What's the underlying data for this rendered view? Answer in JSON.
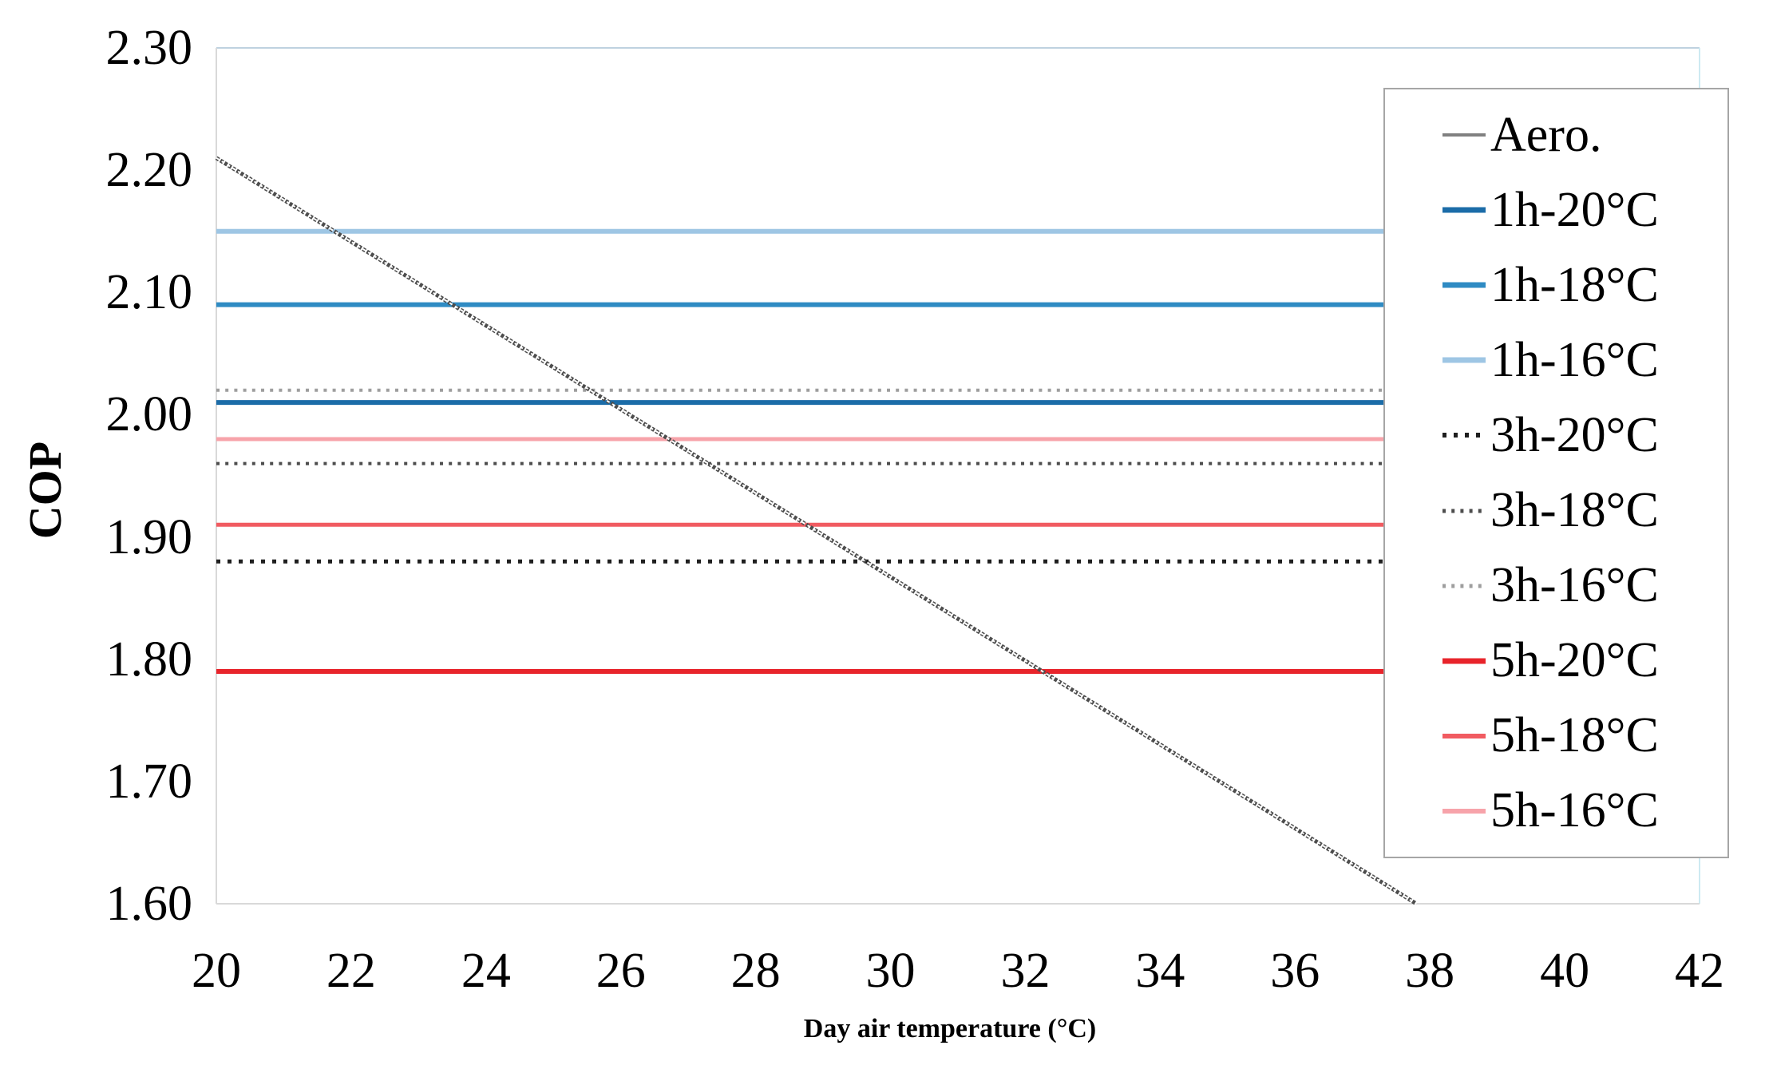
{
  "chart_data": {
    "type": "line",
    "title": "",
    "xlabel": "Day air temperature (°C)",
    "ylabel": "COP",
    "xlim": [
      20,
      42
    ],
    "ylim": [
      1.6,
      2.3
    ],
    "x_ticks": [
      20,
      22,
      24,
      26,
      28,
      30,
      32,
      34,
      36,
      38,
      40,
      42
    ],
    "y_ticks": [
      2.3,
      2.2,
      2.1,
      2.0,
      1.9,
      1.8,
      1.7,
      1.6
    ],
    "y_tick_decimals": 2,
    "grid": false,
    "legend_position": "upper right",
    "colors": {
      "plot_border_top": "#BFD2E0",
      "plot_border_right": "#CDEAF2",
      "plot_border_left": "#D9D9D9",
      "plot_border_bottom": "#D9D9D9",
      "legend_border": "#A6A6A6",
      "text": "#000000"
    },
    "series": [
      {
        "name": "Aero.",
        "kind": "segment",
        "x": [
          20,
          37.8
        ],
        "y": [
          2.21,
          1.6
        ],
        "style": "textured",
        "color": "#4D4D4D",
        "legend_color": "#808080",
        "width": 5
      },
      {
        "name": "1h-20°C",
        "kind": "hline",
        "value": 2.01,
        "style": "solid",
        "color": "#1B6CA8",
        "width": 6
      },
      {
        "name": "1h-18°C",
        "kind": "hline",
        "value": 2.09,
        "style": "solid",
        "color": "#2F8BC3",
        "width": 6
      },
      {
        "name": "1h-16°C",
        "kind": "hline",
        "value": 2.15,
        "style": "solid",
        "color": "#9EC6E4",
        "width": 6
      },
      {
        "name": "3h-20°C",
        "kind": "hline",
        "value": 1.88,
        "style": "dotted",
        "color": "#1F1F1F",
        "width": 5
      },
      {
        "name": "3h-18°C",
        "kind": "hline",
        "value": 1.96,
        "style": "dotted",
        "color": "#4D4D4D",
        "width": 4
      },
      {
        "name": "3h-16°C",
        "kind": "hline",
        "value": 2.02,
        "style": "dotted",
        "color": "#9E9E9E",
        "width": 4
      },
      {
        "name": "5h-20°C",
        "kind": "hline",
        "value": 1.79,
        "style": "solid",
        "color": "#E8242B",
        "width": 6
      },
      {
        "name": "5h-18°C",
        "kind": "hline",
        "value": 1.91,
        "style": "solid",
        "color": "#F15B61",
        "width": 5
      },
      {
        "name": "5h-16°C",
        "kind": "hline",
        "value": 1.98,
        "style": "solid",
        "color": "#F7A3AA",
        "width": 5
      }
    ]
  }
}
